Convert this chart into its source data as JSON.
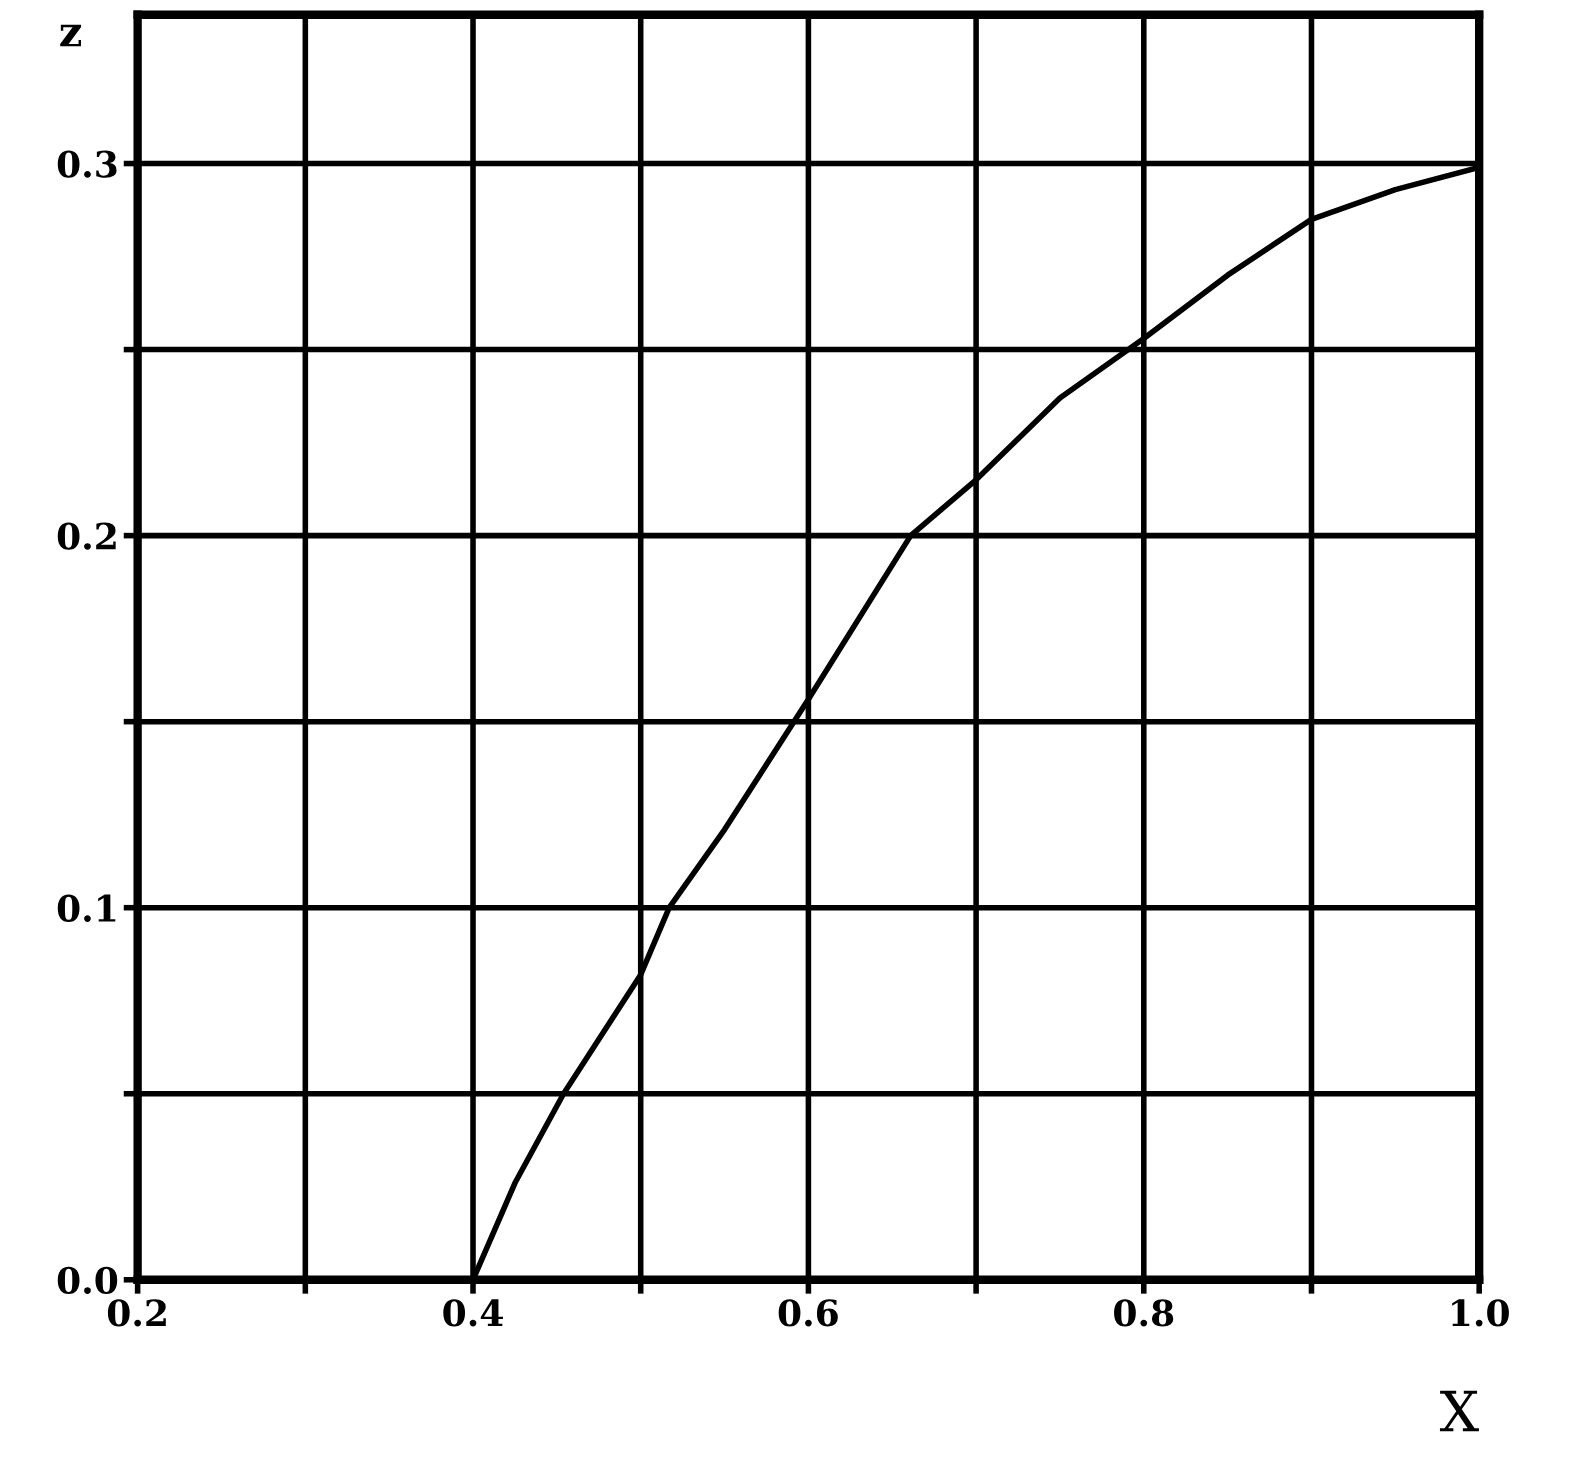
{
  "chart_data": {
    "type": "line",
    "xlabel": "X",
    "ylabel": "z",
    "x": [
      0.4,
      0.425,
      0.454,
      0.5,
      0.517,
      0.55,
      0.6,
      0.661,
      0.7,
      0.75,
      0.8,
      0.85,
      0.9,
      0.95,
      1.0
    ],
    "series": [
      {
        "color": "#000000",
        "values": [
          0.0,
          0.026,
          0.05,
          0.082,
          0.1,
          0.121,
          0.156,
          0.2,
          0.215,
          0.237,
          0.253,
          0.27,
          0.285,
          0.293,
          0.299
        ]
      }
    ],
    "xlim": [
      0.2,
      1.0
    ],
    "ylim": [
      0.0,
      0.34
    ],
    "xticks": [
      {
        "value": 0.2,
        "label": "0.2"
      },
      {
        "value": 0.3,
        "label": null
      },
      {
        "value": 0.4,
        "label": "0.4"
      },
      {
        "value": 0.5,
        "label": null
      },
      {
        "value": 0.6,
        "label": "0.6"
      },
      {
        "value": 0.7,
        "label": null
      },
      {
        "value": 0.8,
        "label": "0.8"
      },
      {
        "value": 0.9,
        "label": null
      },
      {
        "value": 1.0,
        "label": "1.0"
      }
    ],
    "yticks": [
      {
        "value": 0.0,
        "label": "0.0"
      },
      {
        "value": 0.05,
        "label": null
      },
      {
        "value": 0.1,
        "label": "0.1"
      },
      {
        "value": 0.15,
        "label": null
      },
      {
        "value": 0.2,
        "label": "0.2"
      },
      {
        "value": 0.25,
        "label": null
      },
      {
        "value": 0.3,
        "label": "0.3"
      }
    ],
    "grid": true,
    "legend": false,
    "marker": "none",
    "line_style": "solid"
  }
}
